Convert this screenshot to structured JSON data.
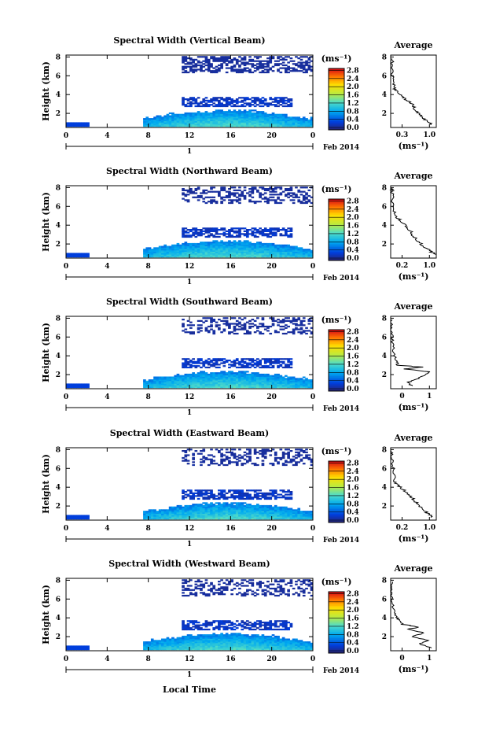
{
  "figure": {
    "xlabel": "Local Time",
    "date_label": "Feb 2014",
    "day_label": "1",
    "unit_label": "(ms⁻¹)",
    "avg_title": "Average",
    "avg_xlabel": "(ms⁻¹)"
  },
  "chart_data": [
    {
      "type": "heatmap",
      "title": "Spectral Width (Vertical Beam)",
      "ylabel": "Height (km)",
      "x_ticks": [
        "0",
        "4",
        "8",
        "12",
        "16",
        "20",
        "0"
      ],
      "xlim_hours": [
        0,
        24
      ],
      "y_ticks": [
        "2",
        "4",
        "6",
        "8"
      ],
      "ylim_km": [
        0.5,
        8.2
      ],
      "colorbar_ticks": [
        "0.0",
        "0.4",
        "0.8",
        "1.2",
        "1.6",
        "2.0",
        "2.4",
        "2.8"
      ],
      "colorbar_range": [
        0.0,
        2.8
      ],
      "average_profile": {
        "x_ticks": [
          "0.3",
          "1.0"
        ],
        "xlim": [
          0.0,
          1.15
        ],
        "y_ticks": [
          "2",
          "4",
          "6",
          "8"
        ],
        "ylim_km": [
          0.5,
          8.2
        ],
        "points": [
          [
            1.05,
            0.8
          ],
          [
            0.9,
            1.2
          ],
          [
            0.8,
            1.6
          ],
          [
            0.7,
            2.0
          ],
          [
            0.6,
            2.5
          ],
          [
            0.55,
            3.0
          ],
          [
            0.4,
            3.4
          ],
          [
            0.3,
            3.8
          ],
          [
            0.18,
            4.2
          ],
          [
            0.1,
            4.6
          ],
          [
            0.08,
            5.2
          ],
          [
            0.05,
            6.0
          ],
          [
            0.04,
            7.0
          ],
          [
            0.03,
            8.0
          ]
        ]
      }
    },
    {
      "type": "heatmap",
      "title": "Spectral Width (Northward Beam)",
      "ylabel": "Height (km)",
      "x_ticks": [
        "0",
        "4",
        "8",
        "12",
        "16",
        "20",
        "0"
      ],
      "xlim_hours": [
        0,
        24
      ],
      "y_ticks": [
        "2",
        "4",
        "6",
        "8"
      ],
      "ylim_km": [
        0.5,
        8.2
      ],
      "colorbar_ticks": [
        "0.0",
        "0.4",
        "0.8",
        "1.2",
        "1.6",
        "2.0",
        "2.4",
        "2.8"
      ],
      "colorbar_range": [
        0.0,
        2.8
      ],
      "average_profile": {
        "x_ticks": [
          "0.2",
          "1.0"
        ],
        "xlim": [
          0.0,
          1.0
        ],
        "y_ticks": [
          "2",
          "4",
          "6",
          "8"
        ],
        "ylim_km": [
          0.5,
          8.2
        ],
        "points": [
          [
            1.0,
            0.8
          ],
          [
            0.85,
            1.3
          ],
          [
            0.7,
            1.8
          ],
          [
            0.6,
            2.3
          ],
          [
            0.5,
            2.8
          ],
          [
            0.45,
            3.3
          ],
          [
            0.35,
            3.8
          ],
          [
            0.25,
            4.3
          ],
          [
            0.15,
            4.8
          ],
          [
            0.08,
            5.5
          ],
          [
            0.05,
            6.5
          ],
          [
            0.03,
            7.5
          ],
          [
            0.02,
            8.0
          ]
        ]
      }
    },
    {
      "type": "heatmap",
      "title": "Spectral Width (Southward Beam)",
      "ylabel": "Height (km)",
      "x_ticks": [
        "0",
        "4",
        "8",
        "12",
        "16",
        "20",
        "0"
      ],
      "xlim_hours": [
        0,
        24
      ],
      "y_ticks": [
        "2",
        "4",
        "6",
        "8"
      ],
      "ylim_km": [
        0.5,
        8.2
      ],
      "colorbar_ticks": [
        "0.0",
        "0.4",
        "0.8",
        "1.2",
        "1.6",
        "2.0",
        "2.4",
        "2.8"
      ],
      "colorbar_range": [
        0.0,
        2.8
      ],
      "average_profile": {
        "x_ticks": [
          "0",
          "1"
        ],
        "xlim": [
          0.0,
          1.3
        ],
        "y_ticks": [
          "2",
          "4",
          "6",
          "8"
        ],
        "ylim_km": [
          0.5,
          8.2
        ],
        "points": [
          [
            0.6,
            0.8
          ],
          [
            0.5,
            1.2
          ],
          [
            0.8,
            1.6
          ],
          [
            1.0,
            2.0
          ],
          [
            1.1,
            2.3
          ],
          [
            0.4,
            2.6
          ],
          [
            0.9,
            2.8
          ],
          [
            0.2,
            3.0
          ],
          [
            0.15,
            3.5
          ],
          [
            0.1,
            4.0
          ],
          [
            0.06,
            5.0
          ],
          [
            0.04,
            6.0
          ],
          [
            0.03,
            7.0
          ],
          [
            0.03,
            8.0
          ]
        ]
      }
    },
    {
      "type": "heatmap",
      "title": "Spectral Width (Eastward Beam)",
      "ylabel": "Height (km)",
      "x_ticks": [
        "0",
        "4",
        "8",
        "12",
        "16",
        "20",
        "0"
      ],
      "xlim_hours": [
        0,
        24
      ],
      "y_ticks": [
        "2",
        "4",
        "6",
        "8"
      ],
      "ylim_km": [
        0.5,
        8.2
      ],
      "colorbar_ticks": [
        "0.0",
        "0.4",
        "0.8",
        "1.2",
        "1.6",
        "2.0",
        "2.4",
        "2.8"
      ],
      "colorbar_range": [
        0.0,
        2.8
      ],
      "average_profile": {
        "x_ticks": [
          "0.2",
          "1.0"
        ],
        "xlim": [
          0.0,
          1.1
        ],
        "y_ticks": [
          "2",
          "4",
          "6",
          "8"
        ],
        "ylim_km": [
          0.5,
          8.2
        ],
        "points": [
          [
            1.0,
            0.8
          ],
          [
            0.9,
            1.2
          ],
          [
            0.75,
            1.7
          ],
          [
            0.65,
            2.2
          ],
          [
            0.55,
            2.7
          ],
          [
            0.45,
            3.2
          ],
          [
            0.35,
            3.6
          ],
          [
            0.2,
            4.1
          ],
          [
            0.1,
            4.6
          ],
          [
            0.07,
            5.5
          ],
          [
            0.05,
            6.5
          ],
          [
            0.03,
            7.5
          ],
          [
            0.02,
            8.0
          ]
        ]
      }
    },
    {
      "type": "heatmap",
      "title": "Spectral Width (Westward Beam)",
      "ylabel": "Height (km)",
      "x_ticks": [
        "0",
        "4",
        "8",
        "12",
        "16",
        "20",
        "0"
      ],
      "xlim_hours": [
        0,
        24
      ],
      "y_ticks": [
        "2",
        "4",
        "6",
        "8"
      ],
      "ylim_km": [
        0.5,
        8.2
      ],
      "colorbar_ticks": [
        "0.0",
        "0.4",
        "0.8",
        "1.2",
        "1.6",
        "2.0",
        "2.4",
        "2.8"
      ],
      "colorbar_range": [
        0.0,
        2.8
      ],
      "average_profile": {
        "x_ticks": [
          "0",
          "1"
        ],
        "xlim": [
          0.0,
          1.1
        ],
        "y_ticks": [
          "2",
          "4",
          "6",
          "8"
        ],
        "ylim_km": [
          0.5,
          8.2
        ],
        "points": [
          [
            1.0,
            0.8
          ],
          [
            0.7,
            1.2
          ],
          [
            0.9,
            1.6
          ],
          [
            0.5,
            2.0
          ],
          [
            0.8,
            2.4
          ],
          [
            0.4,
            2.8
          ],
          [
            0.7,
            3.0
          ],
          [
            0.3,
            3.3
          ],
          [
            0.2,
            3.8
          ],
          [
            0.1,
            4.3
          ],
          [
            0.05,
            5.0
          ],
          [
            0.03,
            6.0
          ],
          [
            0.02,
            7.0
          ],
          [
            0.02,
            8.0
          ]
        ]
      }
    }
  ]
}
